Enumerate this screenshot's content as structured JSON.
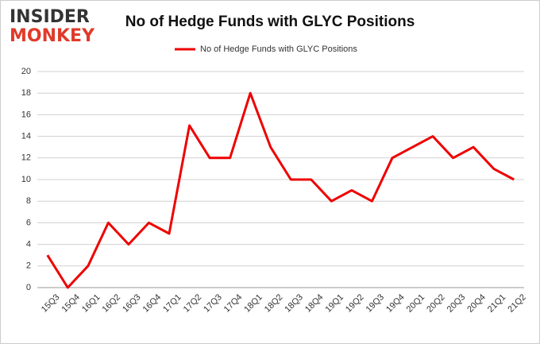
{
  "logo": [
    "INSIDER",
    "MONKEY"
  ],
  "chart_data": {
    "type": "line",
    "title": "No of Hedge Funds with GLYC Positions",
    "categories": [
      "15Q3",
      "15Q4",
      "16Q1",
      "16Q2",
      "16Q3",
      "16Q4",
      "17Q1",
      "17Q2",
      "17Q3",
      "17Q4",
      "18Q1",
      "18Q2",
      "18Q3",
      "18Q4",
      "19Q1",
      "19Q2",
      "19Q3",
      "19Q4",
      "20Q1",
      "20Q2",
      "20Q3",
      "20Q4",
      "21Q1",
      "21Q2"
    ],
    "series": [
      {
        "name": "No of Hedge Funds with GLYC Positions",
        "color": "#ee0000",
        "values": [
          3,
          0,
          2,
          6,
          4,
          6,
          5,
          15,
          12,
          12,
          18,
          13,
          10,
          10,
          8,
          9,
          8,
          12,
          13,
          14,
          12,
          13,
          11,
          10
        ]
      }
    ],
    "ylim": [
      0,
      20
    ],
    "yticks": [
      0,
      2,
      4,
      6,
      8,
      10,
      12,
      14,
      16,
      18,
      20
    ],
    "grid": true,
    "legend": "top"
  }
}
